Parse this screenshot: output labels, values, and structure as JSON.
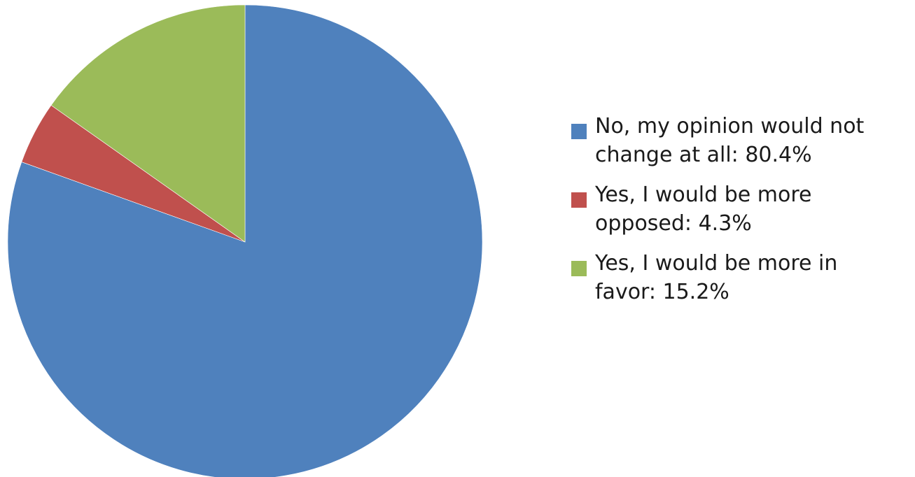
{
  "chart_data": {
    "type": "pie",
    "title": "",
    "start_angle_deg": 90,
    "direction": "clockwise",
    "legend_position": "right",
    "slices": [
      {
        "label": "No, my opinion would not\nchange at all: 80.4%",
        "value": 80.4,
        "color": "#4f81bd"
      },
      {
        "label": "Yes, I would be more\nopposed: 4.3%",
        "value": 4.3,
        "color": "#c0504d"
      },
      {
        "label": "Yes, I would be more in\nfavor: 15.2%",
        "value": 15.2,
        "color": "#9bbb59"
      }
    ]
  }
}
